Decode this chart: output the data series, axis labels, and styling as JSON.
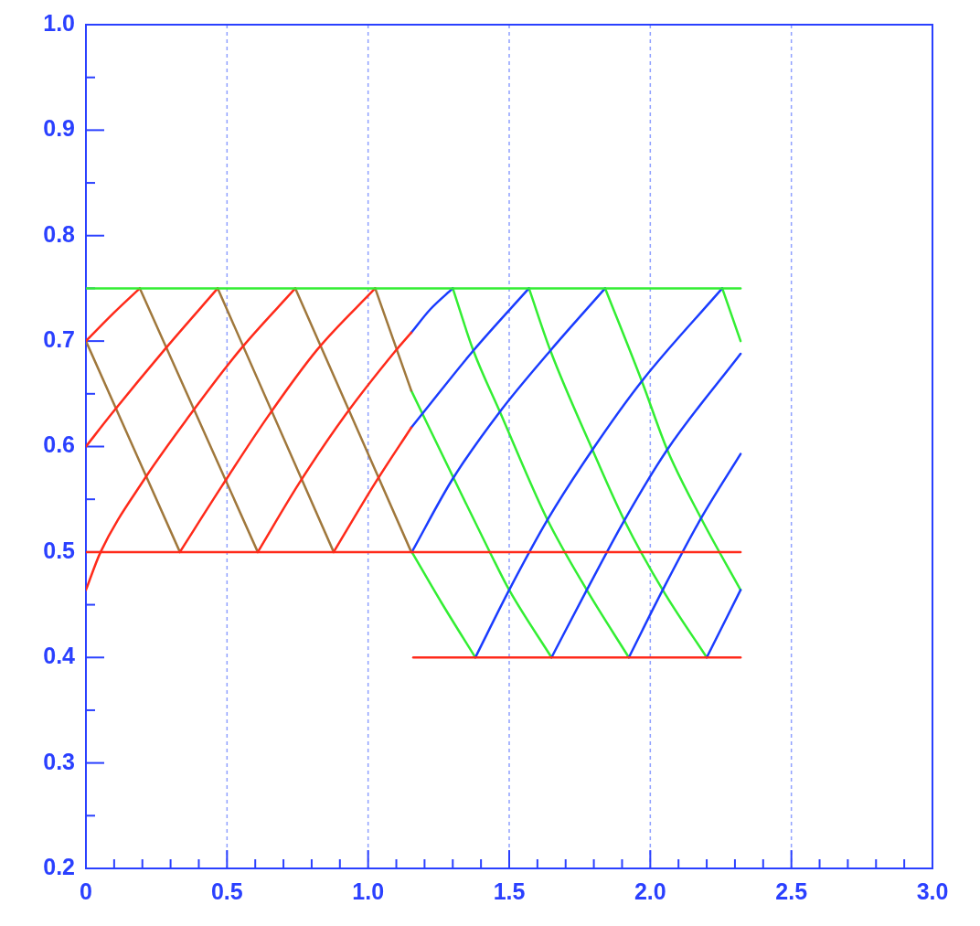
{
  "chart_data": {
    "type": "line",
    "xlim": [
      0,
      3
    ],
    "ylim": [
      0.2,
      1.0
    ],
    "xticks": [
      0,
      {
        "value": 0.1,
        "label": null
      },
      {
        "value": 0.2,
        "label": null
      },
      {
        "value": 0.3,
        "label": null
      },
      {
        "value": 0.4,
        "label": null
      },
      {
        "value": 0.5,
        "label": "0.5"
      },
      {
        "value": 0.6,
        "label": null
      },
      {
        "value": 0.7,
        "label": null
      },
      {
        "value": 0.8,
        "label": null
      },
      {
        "value": 0.9,
        "label": null
      },
      {
        "value": 1,
        "label": "1.0"
      },
      {
        "value": 1.1,
        "label": null
      },
      {
        "value": 1.2,
        "label": null
      },
      {
        "value": 1.3,
        "label": null
      },
      {
        "value": 1.4,
        "label": null
      },
      {
        "value": 1.5,
        "label": "1.5"
      },
      {
        "value": 1.6,
        "label": null
      },
      {
        "value": 1.7,
        "label": null
      },
      {
        "value": 1.8,
        "label": null
      },
      {
        "value": 1.9,
        "label": null
      },
      {
        "value": 2,
        "label": "2.0"
      },
      {
        "value": 2.1,
        "label": null
      },
      {
        "value": 2.2,
        "label": null
      },
      {
        "value": 2.3,
        "label": null
      },
      {
        "value": 2.4,
        "label": null
      },
      {
        "value": 2.5,
        "label": "2.5"
      },
      {
        "value": 2.6,
        "label": null
      },
      {
        "value": 2.7,
        "label": null
      },
      {
        "value": 2.8,
        "label": null
      },
      {
        "value": 2.9,
        "label": null
      },
      {
        "value": 3,
        "label": "3.0"
      }
    ],
    "yticks": [
      0.2,
      {
        "value": 0.25,
        "label": null
      },
      0.3,
      {
        "value": 0.35,
        "label": null
      },
      0.4,
      {
        "value": 0.45,
        "label": null
      },
      0.5,
      {
        "value": 0.55,
        "label": null
      },
      0.6,
      {
        "value": 0.65,
        "label": null
      },
      0.7,
      {
        "value": 0.75,
        "label": null
      },
      0.8,
      {
        "value": 0.85,
        "label": null
      },
      0.9,
      {
        "value": 0.95,
        "label": null
      },
      {
        "value": 1,
        "label": "1.0"
      }
    ],
    "grid": "x",
    "legend": false,
    "marker": "none",
    "line_style": "solid",
    "series": [
      {
        "color": "#33ee33",
        "x": [
          0,
          2.32
        ],
        "values": [
          0.75,
          0.75
        ]
      },
      {
        "color": "#ff2a1a",
        "x": [
          0,
          2.32
        ],
        "values": [
          0.5,
          0.5
        ]
      },
      {
        "color": "#ff2a1a",
        "x": [
          1.16,
          2.32
        ],
        "values": [
          0.4,
          0.4
        ]
      },
      {
        "color": "#ff2a1a",
        "x": [
          0,
          0.052,
          0.207,
          0.366,
          0.547,
          0.742
        ],
        "values": [
          0.464,
          0.5,
          0.569,
          0.629,
          0.692,
          0.75
        ]
      },
      {
        "color": "#ff2a1a",
        "x": [
          0,
          0.094,
          0.279,
          0.467
        ],
        "values": [
          0.6,
          0.632,
          0.692,
          0.75
        ]
      },
      {
        "color": "#ff2a1a",
        "x": [
          0,
          0.1,
          0.191
        ],
        "values": [
          0.7,
          0.727,
          0.75
        ]
      },
      {
        "color": "#ff2a1a",
        "x": [
          0.333,
          0.483,
          0.641,
          0.82,
          1.025
        ],
        "values": [
          0.5,
          0.563,
          0.627,
          0.692,
          0.75
        ]
      },
      {
        "color": "#ff2a1a",
        "x": [
          0.609,
          0.755,
          0.917,
          1.098,
          1.153
        ],
        "values": [
          0.5,
          0.565,
          0.629,
          0.691,
          0.708
        ]
      },
      {
        "color": "#ff2a1a",
        "x": [
          0.878,
          1.024,
          1.153
        ],
        "values": [
          0.5,
          0.565,
          0.618
        ]
      },
      {
        "color": "#a0783c",
        "x": [
          0,
          0.333
        ],
        "values": [
          0.7,
          0.5
        ]
      },
      {
        "color": "#a0783c",
        "x": [
          0.191,
          0.609
        ],
        "values": [
          0.75,
          0.5
        ]
      },
      {
        "color": "#a0783c",
        "x": [
          0.467,
          0.878
        ],
        "values": [
          0.75,
          0.5
        ]
      },
      {
        "color": "#a0783c",
        "x": [
          0.742,
          1.153
        ],
        "values": [
          0.75,
          0.5
        ]
      },
      {
        "color": "#a0783c",
        "x": [
          1.025,
          1.153
        ],
        "values": [
          0.75,
          0.653
        ]
      },
      {
        "color": "#1a3cff",
        "x": [
          1.153,
          1.22,
          1.3
        ],
        "values": [
          0.708,
          0.73,
          0.75
        ]
      },
      {
        "color": "#1a3cff",
        "x": [
          1.153,
          1.195,
          1.373,
          1.57
        ],
        "values": [
          0.618,
          0.632,
          0.691,
          0.75
        ]
      },
      {
        "color": "#1a3cff",
        "x": [
          1.155,
          1.299,
          1.467,
          1.646,
          1.84
        ],
        "values": [
          0.5,
          0.569,
          0.633,
          0.691,
          0.75
        ]
      },
      {
        "color": "#1a3cff",
        "x": [
          1.38,
          1.5,
          1.639,
          1.795,
          1.97,
          2.255
        ],
        "values": [
          0.4,
          0.464,
          0.532,
          0.597,
          0.662,
          0.75
        ]
      },
      {
        "color": "#1a3cff",
        "x": [
          1.65,
          1.775,
          1.908,
          2.06,
          2.32
        ],
        "values": [
          0.4,
          0.464,
          0.53,
          0.597,
          0.688
        ]
      },
      {
        "color": "#1a3cff",
        "x": [
          1.924,
          2.044,
          2.18,
          2.32
        ],
        "values": [
          0.4,
          0.464,
          0.532,
          0.593
        ]
      },
      {
        "color": "#1a3cff",
        "x": [
          2.2,
          2.32
        ],
        "values": [
          0.4,
          0.464
        ]
      },
      {
        "color": "#33ee33",
        "x": [
          1.155,
          1.26,
          1.38
        ],
        "values": [
          0.5,
          0.452,
          0.4
        ]
      },
      {
        "color": "#33ee33",
        "x": [
          1.153,
          1.305,
          1.435,
          1.5,
          1.65
        ],
        "values": [
          0.653,
          0.569,
          0.498,
          0.464,
          0.4
        ]
      },
      {
        "color": "#33ee33",
        "x": [
          1.3,
          1.373,
          1.467,
          1.633,
          1.775,
          1.924
        ],
        "values": [
          0.75,
          0.691,
          0.633,
          0.532,
          0.464,
          0.4
        ]
      },
      {
        "color": "#33ee33",
        "x": [
          1.57,
          1.646,
          1.795,
          1.908,
          2.044,
          2.2
        ],
        "values": [
          0.75,
          0.691,
          0.597,
          0.53,
          0.464,
          0.4
        ]
      },
      {
        "color": "#33ee33",
        "x": [
          1.84,
          1.97,
          2.06,
          2.18,
          2.32
        ],
        "values": [
          0.75,
          0.662,
          0.597,
          0.532,
          0.464
        ]
      },
      {
        "color": "#33ee33",
        "x": [
          2.255,
          2.32
        ],
        "values": [
          0.75,
          0.7
        ]
      }
    ]
  }
}
